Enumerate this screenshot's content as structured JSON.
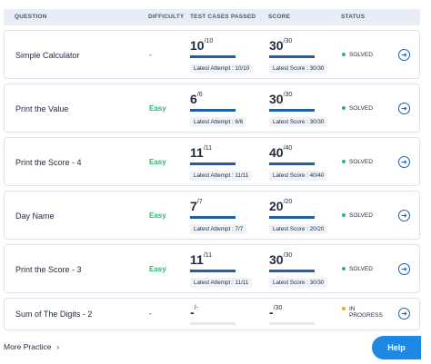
{
  "header": {
    "question": "QUESTION",
    "difficulty": "DIFFICULTY",
    "tests": "TEST CASES PASSED",
    "score": "SCORE",
    "status": "STATUS"
  },
  "rows": [
    {
      "name": "Simple Calculator",
      "difficulty": "-",
      "tests_passed": "10",
      "tests_total": "/10",
      "tests_progress": 1.0,
      "score": "30",
      "score_total": "/30",
      "score_progress": 1.0,
      "latest_attempt": "Latest Attempt : 10/10",
      "latest_score": "Latest Score : 30/30",
      "status": "SOLVED"
    },
    {
      "name": "Print the Value",
      "difficulty": "Easy",
      "tests_passed": "6",
      "tests_total": "/6",
      "tests_progress": 1.0,
      "score": "30",
      "score_total": "/30",
      "score_progress": 1.0,
      "latest_attempt": "Latest Attempt : 6/6",
      "latest_score": "Latest Score : 30/30",
      "status": "SOLVED"
    },
    {
      "name": "Print the Score - 4",
      "difficulty": "Easy",
      "tests_passed": "11",
      "tests_total": "/11",
      "tests_progress": 1.0,
      "score": "40",
      "score_total": "/40",
      "score_progress": 1.0,
      "latest_attempt": "Latest Attempt : 11/11",
      "latest_score": "Latest Score : 40/40",
      "status": "SOLVED"
    },
    {
      "name": "Day Name",
      "difficulty": "Easy",
      "tests_passed": "7",
      "tests_total": "/7",
      "tests_progress": 1.0,
      "score": "20",
      "score_total": "/20",
      "score_progress": 1.0,
      "latest_attempt": "Latest Attempt : 7/7",
      "latest_score": "Latest Score : 20/20",
      "status": "SOLVED"
    },
    {
      "name": "Print the Score - 3",
      "difficulty": "Easy",
      "tests_passed": "11",
      "tests_total": "/11",
      "tests_progress": 1.0,
      "score": "30",
      "score_total": "/30",
      "score_progress": 1.0,
      "latest_attempt": "Latest Attempt : 11/11",
      "latest_score": "Latest Score : 30/30",
      "status": "SOLVED"
    },
    {
      "name": "Sum of The Digits - 2",
      "difficulty": "-",
      "tests_passed": "-",
      "tests_total": "/-",
      "tests_progress": 0,
      "score": "-",
      "score_total": "/30",
      "score_progress": 0,
      "status": "IN PROGRESS"
    }
  ],
  "more_practice": "More Practice",
  "help_label": "Help",
  "colors": {
    "accent": "#1f5fa8",
    "easy": "#2bb673",
    "solved": "#2bb673",
    "in_progress": "#f5a623",
    "help": "#1e88e5"
  },
  "icons": {
    "arrow": "arrow-right-circle-icon",
    "chevron": "chevron-right-icon"
  }
}
